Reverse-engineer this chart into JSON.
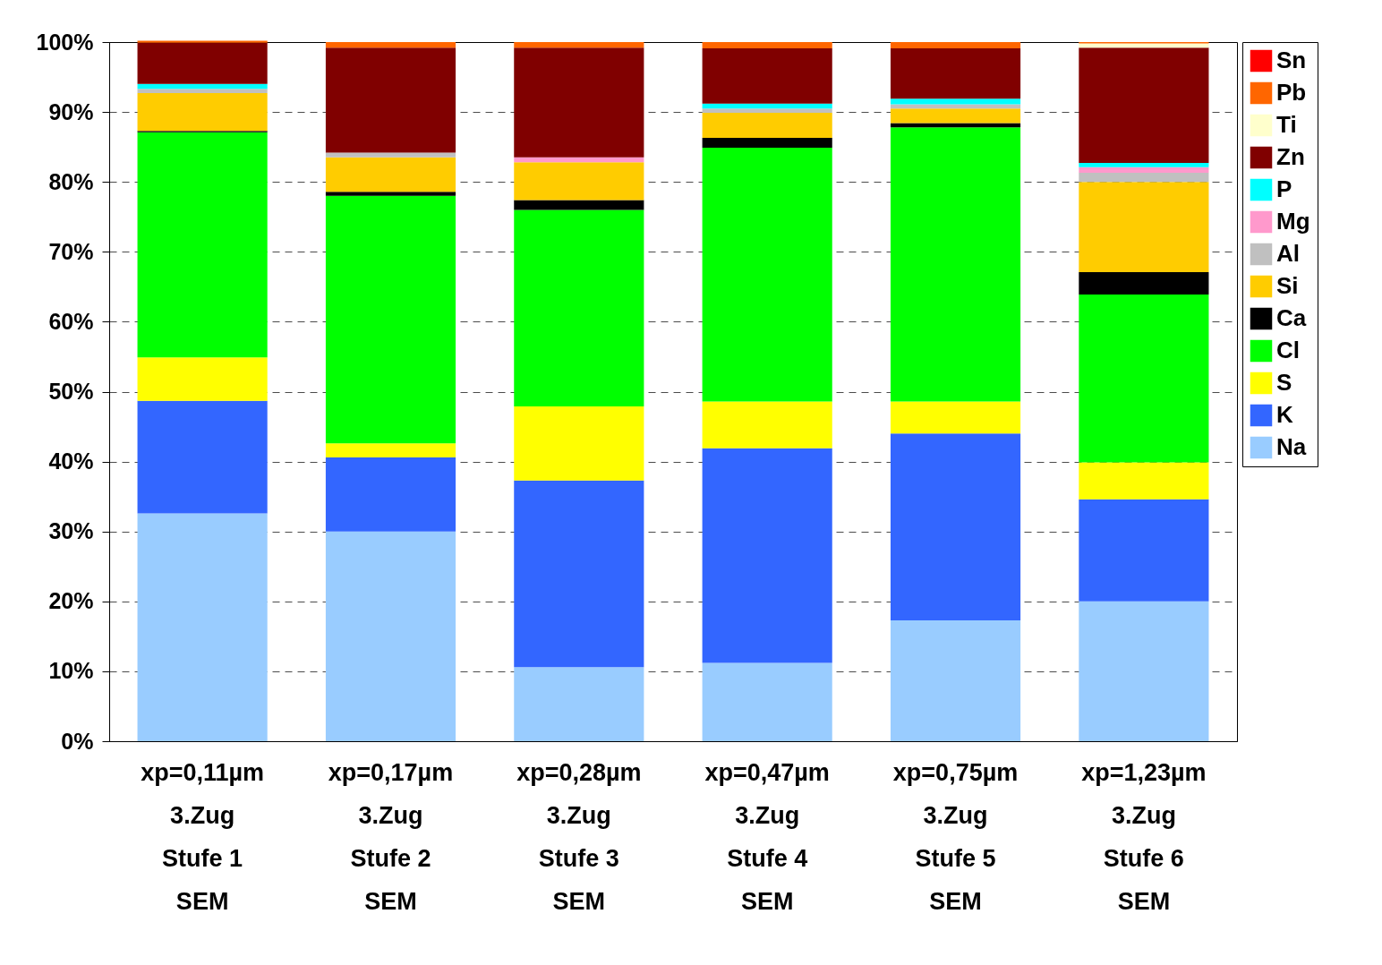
{
  "chart_data": {
    "type": "bar",
    "stacked": true,
    "categories": [
      "xp=0,11µm\n3.Zug\nStufe 1\nSEM",
      "xp=0,17µm\n3.Zug\nStufe 2\nSEM",
      "xp=0,28µm\n3.Zug\nStufe 3\nSEM",
      "xp=0,47µm\n3.Zug\nStufe 4\nSEM",
      "xp=0,75µm\n3.Zug\nStufe 5\nSEM",
      "xp=1,23µm\n3.Zug\nStufe 6\nSEM"
    ],
    "series": [
      {
        "name": "Na",
        "color": "#99ccff",
        "values": [
          32.6,
          30,
          10.6,
          11.2,
          17.3,
          20
        ]
      },
      {
        "name": "K",
        "color": "#3366ff",
        "values": [
          16.1,
          10.6,
          26.7,
          30.7,
          26.7,
          14.6
        ]
      },
      {
        "name": "S",
        "color": "#ffff00",
        "values": [
          6.2,
          2.0,
          10.6,
          6.7,
          4.6,
          5.3
        ]
      },
      {
        "name": "Cl",
        "color": "#00ff00",
        "values": [
          32.2,
          35.4,
          28.1,
          36.3,
          39.2,
          24.0
        ]
      },
      {
        "name": "Ca",
        "color": "#000000",
        "values": [
          0.2,
          0.6,
          1.4,
          1.4,
          0.6,
          3.2
        ]
      },
      {
        "name": "Si",
        "color": "#ffcc00",
        "values": [
          5.4,
          4.9,
          5.4,
          3.6,
          2.1,
          12.9
        ]
      },
      {
        "name": "Al",
        "color": "#c0c0c0",
        "values": [
          0.6,
          0.7,
          0,
          0.6,
          0.6,
          1.3
        ]
      },
      {
        "name": "Mg",
        "color": "#ff99cc",
        "values": [
          0,
          0,
          0.7,
          0,
          0,
          0.8
        ]
      },
      {
        "name": "P",
        "color": "#00ffff",
        "values": [
          0.7,
          0,
          0,
          0.7,
          0.8,
          0.6
        ]
      },
      {
        "name": "Zn",
        "color": "#800000",
        "values": [
          5.9,
          15.0,
          15.7,
          7.9,
          7.2,
          16.5
        ]
      },
      {
        "name": "Ti",
        "color": "#ffffcc",
        "values": [
          0,
          0,
          0,
          0,
          0,
          0.6
        ]
      },
      {
        "name": "Pb",
        "color": "#ff6600",
        "values": [
          0.3,
          0.8,
          0.8,
          0.9,
          0.9,
          0.2
        ]
      },
      {
        "name": "Sn",
        "color": "#ff0000",
        "values": [
          0,
          0,
          0,
          0,
          0,
          0
        ]
      }
    ],
    "ylim": [
      0,
      100
    ],
    "yticks": [
      {
        "value": 0,
        "label": "0%"
      },
      {
        "value": 10,
        "label": "10%"
      },
      {
        "value": 20,
        "label": "20%"
      },
      {
        "value": 30,
        "label": "30%"
      },
      {
        "value": 40,
        "label": "40%"
      },
      {
        "value": 50,
        "label": "50%"
      },
      {
        "value": 60,
        "label": "60%"
      },
      {
        "value": 70,
        "label": "70%"
      },
      {
        "value": 80,
        "label": "80%"
      },
      {
        "value": 90,
        "label": "90%"
      },
      {
        "value": 100,
        "label": "100%"
      }
    ],
    "grid": "y",
    "legend": "right"
  }
}
